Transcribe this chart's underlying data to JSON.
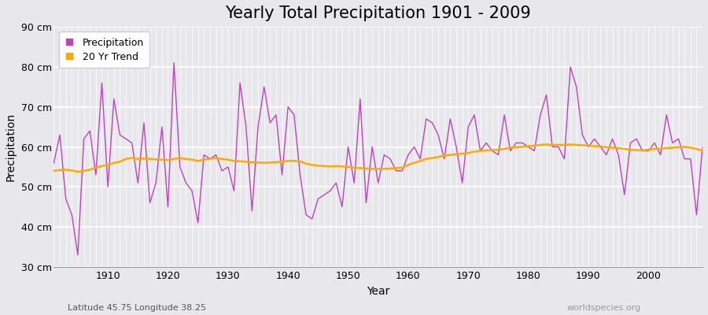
{
  "title": "Yearly Total Precipitation 1901 - 2009",
  "xlabel": "Year",
  "ylabel": "Precipitation",
  "subtitle": "Latitude 45.75 Longitude 38.25",
  "credit": "worldspecies.org",
  "years": [
    1901,
    1902,
    1903,
    1904,
    1905,
    1906,
    1907,
    1908,
    1909,
    1910,
    1911,
    1912,
    1913,
    1914,
    1915,
    1916,
    1917,
    1918,
    1919,
    1920,
    1921,
    1922,
    1923,
    1924,
    1925,
    1926,
    1927,
    1928,
    1929,
    1930,
    1931,
    1932,
    1933,
    1934,
    1935,
    1936,
    1937,
    1938,
    1939,
    1940,
    1941,
    1942,
    1943,
    1944,
    1945,
    1946,
    1947,
    1948,
    1949,
    1950,
    1951,
    1952,
    1953,
    1954,
    1955,
    1956,
    1957,
    1958,
    1959,
    1960,
    1961,
    1962,
    1963,
    1964,
    1965,
    1966,
    1967,
    1968,
    1969,
    1970,
    1971,
    1972,
    1973,
    1974,
    1975,
    1976,
    1977,
    1978,
    1979,
    1980,
    1981,
    1982,
    1983,
    1984,
    1985,
    1986,
    1987,
    1988,
    1989,
    1990,
    1991,
    1992,
    1993,
    1994,
    1995,
    1996,
    1997,
    1998,
    1999,
    2000,
    2001,
    2002,
    2003,
    2004,
    2005,
    2006,
    2007,
    2008,
    2009
  ],
  "precip": [
    56,
    63,
    47,
    43,
    33,
    62,
    64,
    53,
    76,
    50,
    72,
    63,
    62,
    61,
    51,
    66,
    46,
    51,
    65,
    45,
    81,
    55,
    51,
    49,
    41,
    58,
    57,
    58,
    54,
    55,
    49,
    76,
    65,
    44,
    65,
    75,
    66,
    68,
    53,
    70,
    68,
    53,
    43,
    42,
    47,
    48,
    49,
    51,
    45,
    60,
    51,
    72,
    46,
    60,
    51,
    58,
    57,
    54,
    54,
    58,
    60,
    57,
    67,
    66,
    63,
    57,
    67,
    60,
    51,
    65,
    68,
    59,
    61,
    59,
    58,
    68,
    59,
    61,
    61,
    60,
    59,
    68,
    73,
    60,
    60,
    57,
    80,
    75,
    63,
    60,
    62,
    60,
    58,
    62,
    58,
    48,
    61,
    62,
    59,
    59,
    61,
    58,
    68,
    61,
    62,
    57,
    57,
    43,
    60
  ],
  "trend": [
    54.0,
    54.2,
    54.3,
    54.1,
    53.8,
    54.0,
    54.3,
    54.8,
    55.2,
    55.5,
    56.0,
    56.3,
    57.0,
    57.2,
    57.0,
    57.1,
    57.0,
    56.9,
    56.8,
    56.7,
    57.0,
    57.2,
    57.0,
    56.8,
    56.5,
    56.8,
    57.0,
    57.2,
    57.0,
    56.8,
    56.5,
    56.4,
    56.3,
    56.2,
    56.1,
    56.0,
    56.1,
    56.2,
    56.3,
    56.5,
    56.5,
    56.4,
    55.8,
    55.5,
    55.3,
    55.2,
    55.1,
    55.2,
    55.1,
    55.0,
    54.8,
    54.7,
    54.6,
    54.5,
    54.5,
    54.5,
    54.6,
    54.7,
    54.8,
    55.5,
    56.0,
    56.5,
    57.0,
    57.2,
    57.5,
    57.8,
    58.0,
    58.2,
    58.3,
    58.5,
    58.8,
    59.0,
    59.1,
    59.2,
    59.3,
    59.5,
    59.8,
    59.9,
    60.0,
    60.2,
    60.3,
    60.5,
    60.6,
    60.5,
    60.5,
    60.5,
    60.6,
    60.5,
    60.4,
    60.3,
    60.2,
    60.1,
    59.9,
    59.8,
    59.7,
    59.5,
    59.3,
    59.2,
    59.1,
    59.3,
    59.5,
    59.6,
    59.7,
    59.8,
    59.9,
    60.0,
    59.8,
    59.5,
    59.0
  ],
  "precip_color": "#bb44bb",
  "trend_color": "#ffaa00",
  "bg_color": "#e8e8ec",
  "plot_bg_color": "#e8e8ec",
  "grid_color": "#ffffff",
  "ylim": [
    30,
    90
  ],
  "yticks": [
    30,
    40,
    50,
    60,
    70,
    80,
    90
  ],
  "ytick_labels": [
    "30 cm",
    "40 cm",
    "50 cm",
    "60 cm",
    "70 cm",
    "80 cm",
    "90 cm"
  ],
  "xticks": [
    1910,
    1920,
    1930,
    1940,
    1950,
    1960,
    1970,
    1980,
    1990,
    2000
  ],
  "title_fontsize": 15,
  "label_fontsize": 10,
  "tick_fontsize": 9,
  "legend_fontsize": 9
}
